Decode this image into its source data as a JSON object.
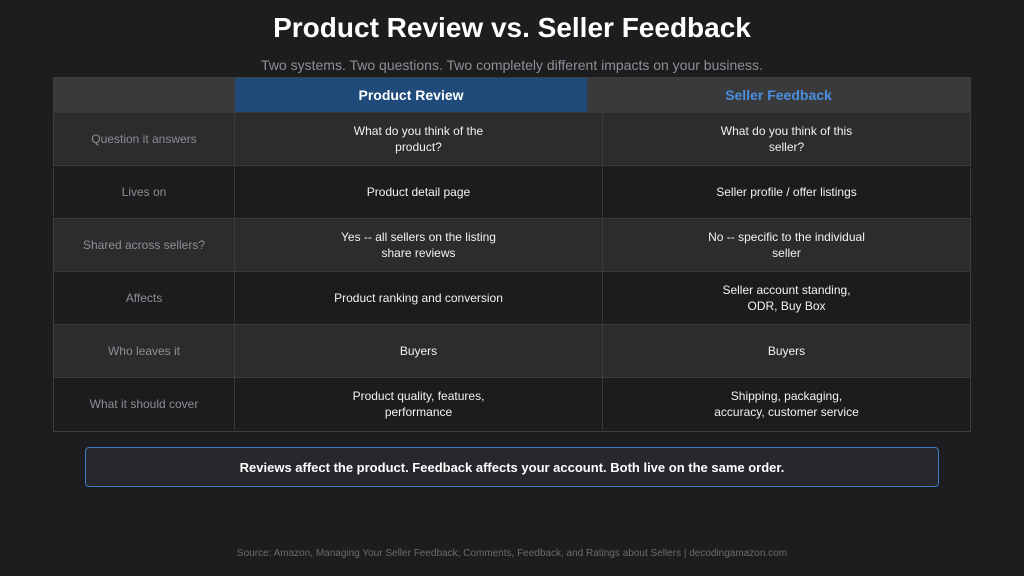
{
  "header": {
    "title": "Product Review vs. Seller Feedback",
    "subtitle": "Two systems. Two questions. Two completely different impacts on your business."
  },
  "table": {
    "columns": [
      "",
      "Product Review",
      "Seller Feedback"
    ],
    "rows": [
      {
        "label": "Question it answers",
        "product_review": "What do you think of the product?",
        "seller_feedback": "What do you think of this seller?"
      },
      {
        "label": "Lives on",
        "product_review": "Product detail page",
        "seller_feedback": "Seller profile / offer listings"
      },
      {
        "label": "Shared across sellers?",
        "product_review": "Yes -- all sellers on the listing share reviews",
        "seller_feedback": "No -- specific to the individual seller"
      },
      {
        "label": "Affects",
        "product_review": "Product ranking and conversion",
        "seller_feedback": "Seller account standing, ODR, Buy Box"
      },
      {
        "label": "Who leaves it",
        "product_review": "Buyers",
        "seller_feedback": "Buyers"
      },
      {
        "label": "What it should cover",
        "product_review": "Product quality, features, performance",
        "seller_feedback": "Shipping, packaging, accuracy, customer service"
      }
    ]
  },
  "callout": {
    "text": "Reviews affect the product. Feedback affects your account. Both live on the same order."
  },
  "footer": {
    "source": "Source: Amazon, Managing Your Seller Feedback; Comments, Feedback, and Ratings about Sellers | decodingamazon.com"
  },
  "colors": {
    "background": "#1d1d1f",
    "product_review_header": "#1f4a7a",
    "seller_feedback_accent": "#4a8fe0",
    "callout_border": "#3f79c4"
  }
}
